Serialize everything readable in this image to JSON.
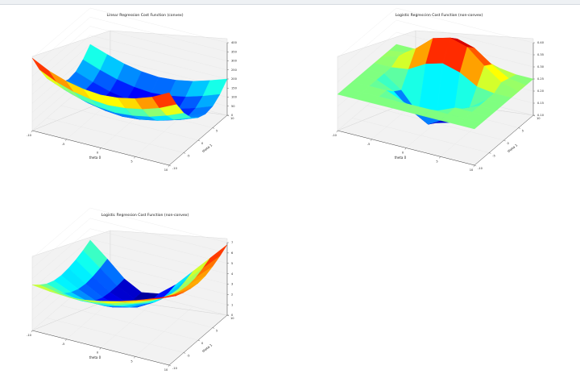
{
  "figure": {
    "background": "#ffffff",
    "colormap": "jet"
  },
  "chart_data": [
    {
      "type": "surface",
      "title": "Linear Regression Cost Function (convex)",
      "xlabel": "theta 0",
      "ylabel": "theta 1",
      "zlabel": "",
      "xlim": [
        -10,
        10
      ],
      "ylim": [
        -10,
        10
      ],
      "zlim": [
        0,
        400
      ],
      "xticks": [
        -10,
        -5,
        0,
        5,
        10
      ],
      "yticks": [
        -10,
        -5,
        0,
        5,
        10
      ],
      "zticks": [
        0,
        50,
        100,
        150,
        200,
        250,
        300,
        350,
        400
      ],
      "surface": {
        "x": [
          -10,
          -7.5,
          -5,
          -2.5,
          0,
          2.5,
          5,
          7.5,
          10
        ],
        "y": [
          -10,
          -7.5,
          -5,
          -2.5,
          0,
          2.5,
          5,
          7.5,
          10
        ],
        "z": [
          [
            400,
            352,
            320,
            300,
            292,
            300,
            320,
            352,
            400
          ],
          [
            302,
            258,
            228,
            210,
            202,
            210,
            228,
            258,
            302
          ],
          [
            220,
            182,
            152,
            134,
            126,
            134,
            152,
            182,
            220
          ],
          [
            160,
            124,
            96,
            78,
            70,
            78,
            96,
            124,
            160
          ],
          [
            125,
            90,
            62,
            44,
            36,
            44,
            62,
            90,
            125
          ],
          [
            110,
            76,
            48,
            30,
            22,
            30,
            48,
            76,
            110
          ],
          [
            118,
            84,
            56,
            38,
            30,
            38,
            56,
            84,
            118
          ],
          [
            150,
            116,
            88,
            70,
            62,
            70,
            88,
            116,
            150
          ],
          [
            200,
            168,
            140,
            122,
            114,
            122,
            140,
            168,
            200
          ]
        ]
      }
    },
    {
      "type": "surface",
      "title": "Logistic Regression Cost Function (non-convex)",
      "xlabel": "theta 0",
      "ylabel": "theta 1",
      "zlabel": "",
      "xlim": [
        -10,
        10
      ],
      "ylim": [
        -10,
        10
      ],
      "zlim": [
        0.1,
        0.4
      ],
      "xticks": [
        -10,
        -5,
        0,
        5,
        10
      ],
      "yticks": [
        -10,
        -5,
        0,
        5,
        10
      ],
      "zticks": [
        0.1,
        0.15,
        0.2,
        0.25,
        0.3,
        0.35,
        0.4
      ],
      "surface": {
        "x": [
          -10,
          -7.5,
          -5,
          -2.5,
          0,
          2.5,
          5,
          7.5,
          10
        ],
        "y": [
          -10,
          -7.5,
          -5,
          -2.5,
          0,
          2.5,
          5,
          7.5,
          10
        ],
        "z": [
          [
            0.25,
            0.25,
            0.25,
            0.25,
            0.25,
            0.25,
            0.25,
            0.25,
            0.25
          ],
          [
            0.25,
            0.25,
            0.25,
            0.25,
            0.25,
            0.25,
            0.25,
            0.25,
            0.25
          ],
          [
            0.25,
            0.25,
            0.25,
            0.22,
            0.2,
            0.22,
            0.25,
            0.25,
            0.25
          ],
          [
            0.25,
            0.25,
            0.22,
            0.16,
            0.12,
            0.16,
            0.22,
            0.25,
            0.25
          ],
          [
            0.25,
            0.25,
            0.2,
            0.12,
            0.1,
            0.12,
            0.2,
            0.25,
            0.25
          ],
          [
            0.25,
            0.25,
            0.26,
            0.3,
            0.32,
            0.3,
            0.26,
            0.25,
            0.25
          ],
          [
            0.25,
            0.27,
            0.32,
            0.38,
            0.4,
            0.38,
            0.32,
            0.27,
            0.25
          ],
          [
            0.25,
            0.26,
            0.3,
            0.35,
            0.37,
            0.35,
            0.3,
            0.26,
            0.25
          ],
          [
            0.25,
            0.25,
            0.26,
            0.28,
            0.29,
            0.28,
            0.26,
            0.25,
            0.25
          ]
        ]
      }
    },
    {
      "type": "surface",
      "title": "Logistic Regression Cost Function (non-convex)",
      "xlabel": "theta 0",
      "ylabel": "theta 1",
      "zlabel": "",
      "xlim": [
        -10,
        10
      ],
      "ylim": [
        -10,
        10
      ],
      "zlim": [
        0,
        7
      ],
      "xticks": [
        -10,
        -5,
        0,
        5,
        10
      ],
      "yticks": [
        -10,
        -5,
        0,
        5,
        10
      ],
      "zticks": [
        0,
        1,
        2,
        3,
        4,
        5,
        6,
        7
      ],
      "surface": {
        "x": [
          -10,
          -7.5,
          -5,
          -2.5,
          0,
          2.5,
          5,
          7.5,
          10
        ],
        "y": [
          -10,
          -7.5,
          -5,
          -2.5,
          0,
          2.5,
          5,
          7.5,
          10
        ],
        "z": [
          [
            4.4,
            4.2,
            4.1,
            4.2,
            4.5,
            4.9,
            5.4,
            6.0,
            6.6
          ],
          [
            3.8,
            3.5,
            3.3,
            3.4,
            3.7,
            4.2,
            4.8,
            5.4,
            6.1
          ],
          [
            3.3,
            2.8,
            2.5,
            2.6,
            2.9,
            3.5,
            4.2,
            5.0,
            5.8
          ],
          [
            3.0,
            2.3,
            1.8,
            1.8,
            2.2,
            2.9,
            3.7,
            4.6,
            5.6
          ],
          [
            2.9,
            2.0,
            1.3,
            1.1,
            1.5,
            2.3,
            3.3,
            4.4,
            5.5
          ],
          [
            3.0,
            1.9,
            1.0,
            0.6,
            0.9,
            1.8,
            3.0,
            4.3,
            5.6
          ],
          [
            3.2,
            2.0,
            0.9,
            0.3,
            0.5,
            1.5,
            2.9,
            4.4,
            5.9
          ],
          [
            3.5,
            2.2,
            0.9,
            0.1,
            0.3,
            1.5,
            3.1,
            4.7,
            6.3
          ],
          [
            3.9,
            2.5,
            1.0,
            0.1,
            0.4,
            1.7,
            3.4,
            5.1,
            6.8
          ]
        ]
      }
    }
  ]
}
